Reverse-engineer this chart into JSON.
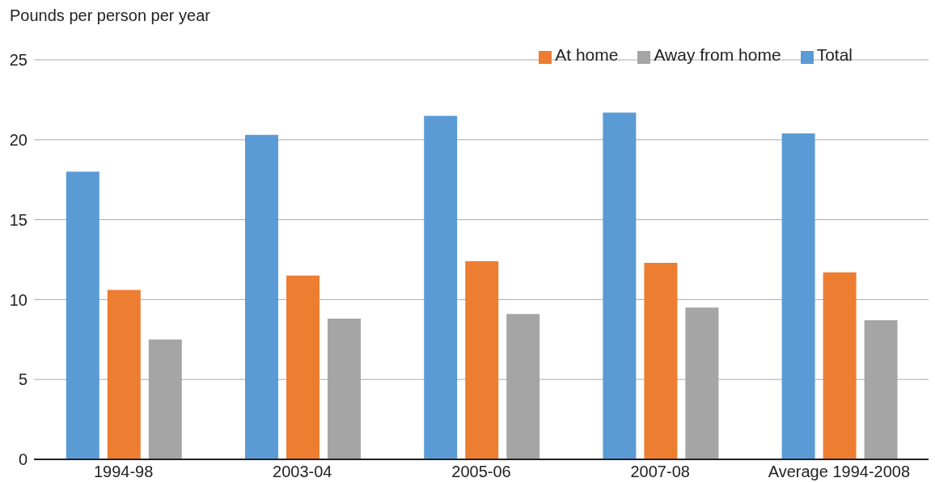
{
  "chart_data": {
    "type": "bar",
    "ylabel": "Pounds per person per year",
    "categories": [
      "1994-98",
      "2003-04",
      "2005-06",
      "2007-08",
      "Average 1994-2008"
    ],
    "series": [
      {
        "name": "Total",
        "color": "#5b9bd5",
        "values": [
          18.0,
          20.3,
          21.5,
          21.7,
          20.4
        ]
      },
      {
        "name": "At home",
        "color": "#ed7d31",
        "values": [
          10.6,
          11.5,
          12.4,
          12.3,
          11.7
        ]
      },
      {
        "name": "Away from home",
        "color": "#a5a5a5",
        "values": [
          7.5,
          8.8,
          9.1,
          9.5,
          8.7
        ]
      }
    ],
    "ylim": [
      0,
      25
    ],
    "yticks": [
      0,
      5,
      10,
      15,
      20,
      25
    ],
    "grid": "y",
    "legend": "top right"
  }
}
